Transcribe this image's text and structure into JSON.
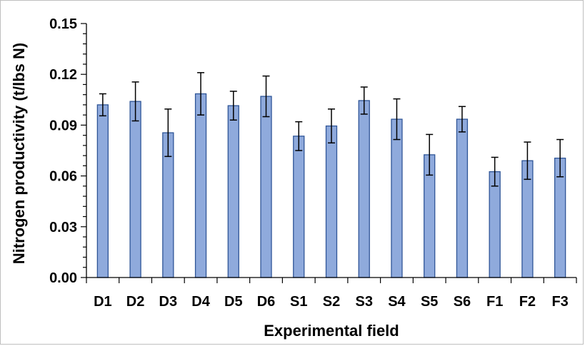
{
  "chart_data": {
    "type": "bar",
    "title": "",
    "xlabel": "Experimental field",
    "ylabel": "Nitrogen productivity (t/lbs N)",
    "ylim": [
      0,
      0.15
    ],
    "y_ticks": [
      "0.00",
      "0.03",
      "0.06",
      "0.09",
      "0.12",
      "0.15"
    ],
    "categories": [
      "D1",
      "D2",
      "D3",
      "D4",
      "D5",
      "D6",
      "S1",
      "S2",
      "S3",
      "S4",
      "S5",
      "S6",
      "F1",
      "F2",
      "F3"
    ],
    "values": [
      0.102,
      0.104,
      0.0855,
      0.1085,
      0.1015,
      0.107,
      0.0835,
      0.0895,
      0.1045,
      0.0935,
      0.0725,
      0.0935,
      0.0625,
      0.069,
      0.0705
    ],
    "error": [
      0.0065,
      0.0115,
      0.014,
      0.0125,
      0.0085,
      0.012,
      0.0085,
      0.01,
      0.008,
      0.012,
      0.012,
      0.0075,
      0.0085,
      0.011,
      0.011
    ],
    "grid": false,
    "bar_color": "#8faadc",
    "bar_edge_color": "#2f5597",
    "error_bar_color": "#000000"
  }
}
